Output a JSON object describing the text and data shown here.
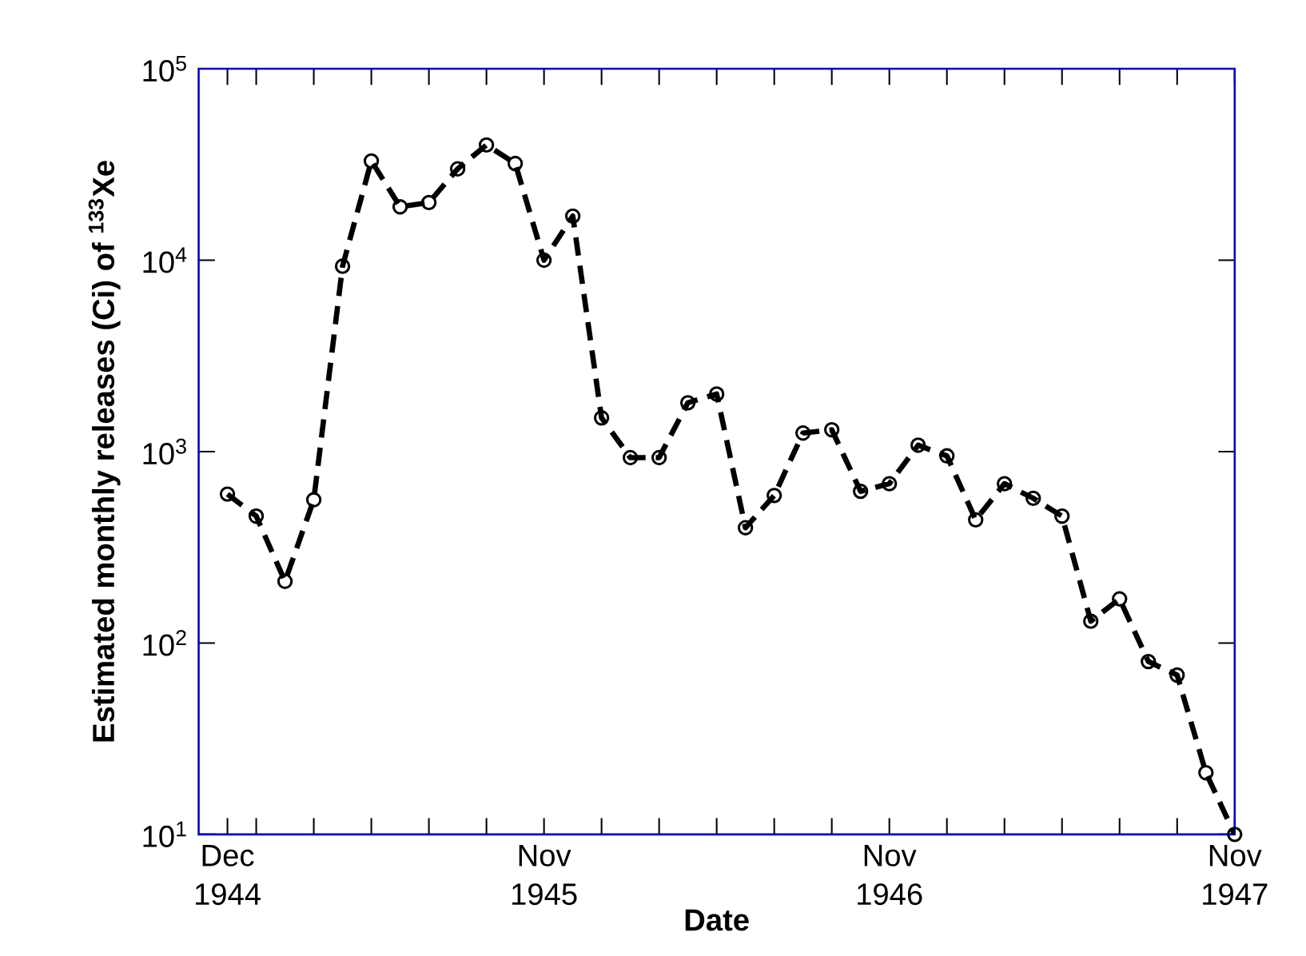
{
  "chart_data": {
    "type": "line",
    "xlabel": "Date",
    "ylabel": "Estimated monthly releases (Ci) of $^{133}$Xe",
    "log": "y",
    "marker": "circle",
    "line_style": "dashed",
    "xlim": [
      "1944-11",
      "1947-11"
    ],
    "ylim": [
      10,
      100000
    ],
    "xticks": [
      {
        "value": "1944-12",
        "label": "Dec 1944"
      },
      {
        "value": "1945-01",
        "label": null
      },
      {
        "value": "1945-03",
        "label": null
      },
      {
        "value": "1945-05",
        "label": null
      },
      {
        "value": "1945-07",
        "label": null
      },
      {
        "value": "1945-09",
        "label": null
      },
      {
        "value": "1945-11",
        "label": "Nov 1945"
      },
      {
        "value": "1946-01",
        "label": null
      },
      {
        "value": "1946-03",
        "label": null
      },
      {
        "value": "1946-05",
        "label": null
      },
      {
        "value": "1946-07",
        "label": null
      },
      {
        "value": "1946-09",
        "label": null
      },
      {
        "value": "1946-11",
        "label": "Nov 1946"
      },
      {
        "value": "1947-01",
        "label": null
      },
      {
        "value": "1947-03",
        "label": null
      },
      {
        "value": "1947-05",
        "label": null
      },
      {
        "value": "1947-07",
        "label": null
      },
      {
        "value": "1947-09",
        "label": null
      },
      {
        "value": "1947-11",
        "label": "Nov 1947"
      }
    ],
    "yticks": [
      {
        "value": 10,
        "label": "10$^{1}$"
      },
      {
        "value": 100,
        "label": "10$^{2}$"
      },
      {
        "value": 1000,
        "label": "10$^{3}$"
      },
      {
        "value": 10000,
        "label": "10$^{4}$"
      },
      {
        "value": 100000,
        "label": "10$^{5}$"
      }
    ],
    "x": [
      "1944-12",
      "1945-01",
      "1945-02",
      "1945-03",
      "1945-04",
      "1945-05",
      "1945-06",
      "1945-07",
      "1945-08",
      "1945-09",
      "1945-10",
      "1945-11",
      "1945-12",
      "1946-01",
      "1946-02",
      "1946-03",
      "1946-04",
      "1946-05",
      "1946-06",
      "1946-07",
      "1946-08",
      "1946-09",
      "1946-10",
      "1946-11",
      "1946-12",
      "1947-01",
      "1947-02",
      "1947-03",
      "1947-04",
      "1947-05",
      "1947-06",
      "1947-07",
      "1947-08",
      "1947-09",
      "1947-10",
      "1947-11"
    ],
    "series": [
      {
        "color": "#000000",
        "values": [
          600,
          460,
          210,
          560,
          9300,
          33000,
          19000,
          20000,
          30000,
          40000,
          32000,
          10000,
          17000,
          1500,
          930,
          930,
          1800,
          2000,
          400,
          590,
          1250,
          1300,
          620,
          680,
          1080,
          950,
          440,
          680,
          570,
          460,
          130,
          170,
          80,
          68,
          21,
          10
        ]
      }
    ]
  }
}
